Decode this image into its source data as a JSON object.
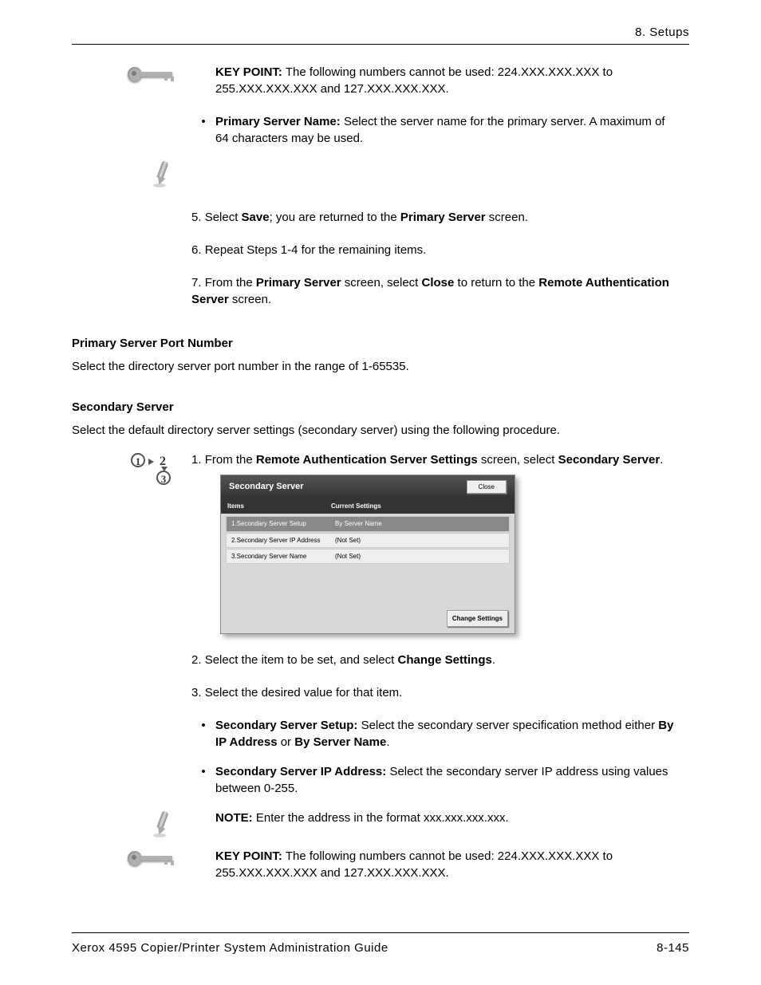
{
  "header": {
    "section": "8. Setups"
  },
  "keypoint1": {
    "label": "KEY POINT:",
    "text": "The following numbers cannot be used:  224.XXX.XXX.XXX to 255.XXX.XXX.XXX and 127.XXX.XXX.XXX."
  },
  "bullet_primary_name": {
    "term": "Primary Server Name:  ",
    "text": "Select the server name for the primary server.  A maximum of 64 characters may be used."
  },
  "step5": {
    "num": "5.",
    "pre": "Select ",
    "b1": "Save",
    "mid": "; you are returned to the ",
    "b2": "Primary Server",
    "post": " screen."
  },
  "step6": {
    "num": "6.",
    "text": "Repeat Steps 1-4 for the remaining items."
  },
  "step7": {
    "num": "7.",
    "t1": "From the ",
    "b1": "Primary Server",
    "t2": " screen, select ",
    "b2": "Close",
    "t3": " to return to the ",
    "b3": "Remote Authentication Server",
    "t4": " screen."
  },
  "port_h": "Primary Server Port Number",
  "port_p": "Select the directory server port number in the range of 1-65535.",
  "sec_h": "Secondary Server",
  "sec_p": "Select the default directory server settings (secondary server) using the following procedure.",
  "secstep1": {
    "num": "1.",
    "t1": "From the ",
    "b1": "Remote Authentication Server Settings",
    "t2": " screen, select ",
    "b2": "Secondary Server",
    "t3": "."
  },
  "shot": {
    "title": "Secondary Server",
    "close": "Close",
    "hcol1": "Items",
    "hcol2": "Current Settings",
    "rows": [
      {
        "c1": "1.Secondary Server Setup",
        "c2": "By Server Name"
      },
      {
        "c1": "2.Secondary Server IP Address",
        "c2": "(Not Set)"
      },
      {
        "c1": "3.Secondary Server Name",
        "c2": "(Not Set)"
      }
    ],
    "change": "Change Settings"
  },
  "secstep2": {
    "num": "2.",
    "t1": "Select the item to be set, and select ",
    "b1": "Change Settings",
    "t2": "."
  },
  "secstep3": {
    "num": "3.",
    "text": "Select the desired value for that item."
  },
  "bullet_sec_setup": {
    "term": "Secondary Server Setup:  ",
    "t1": "Select the secondary server specification method either ",
    "b1": "By IP Address",
    "t2": " or ",
    "b2": "By Server Name",
    "t3": "."
  },
  "bullet_sec_ip": {
    "term": "Secondary Server IP Address:  ",
    "text": "Select the secondary server IP address using values between 0-255."
  },
  "note2": {
    "label": "NOTE:",
    "text": "Enter the address in the format xxx.xxx.xxx.xxx."
  },
  "keypoint2": {
    "label": "KEY POINT:",
    "text": "The following numbers cannot be used:  224.XXX.XXX.XXX to 255.XXX.XXX.XXX and 127.XXX.XXX.XXX."
  },
  "footer": {
    "left": "Xerox 4595 Copier/Printer System Administration Guide",
    "right": "8-145"
  },
  "colors": {
    "text": "#000000",
    "bg": "#ffffff",
    "shot_bg": "#d8d8d8",
    "shot_header": "#444444"
  }
}
